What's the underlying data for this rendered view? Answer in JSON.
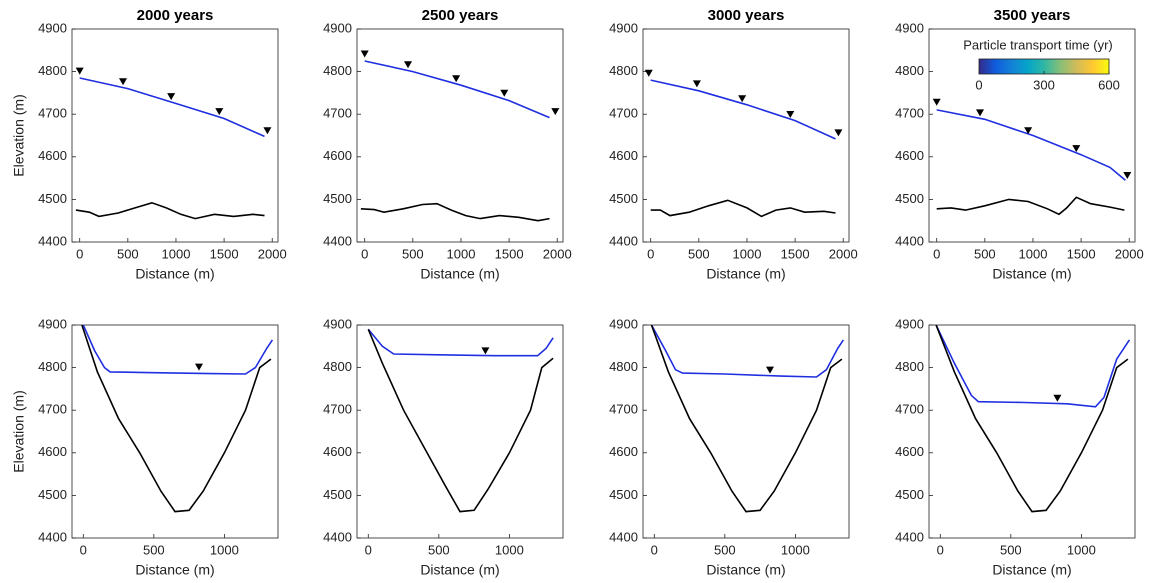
{
  "chart_data": [
    {
      "type": "line",
      "title": "2000 years",
      "xlabel": "Distance (m)",
      "ylabel": "Elevation (m)",
      "xlim": [
        -80,
        2060
      ],
      "ylim": [
        4400,
        4900
      ],
      "xticks": [
        0,
        500,
        1000,
        1500,
        2000
      ],
      "yticks": [
        4400,
        4500,
        4600,
        4700,
        4800,
        4900
      ],
      "series": [
        {
          "color": "#1f2fe0",
          "x": [
            0,
            500,
            1000,
            1500,
            1920
          ],
          "values": [
            4785,
            4760,
            4725,
            4690,
            4648
          ]
        },
        {
          "color": "#000000",
          "x": [
            -40,
            100,
            200,
            400,
            600,
            750,
            900,
            1050,
            1200,
            1400,
            1600,
            1800,
            1920
          ],
          "values": [
            4475,
            4470,
            4460,
            4468,
            4482,
            4492,
            4480,
            4465,
            4455,
            4465,
            4460,
            4465,
            4462
          ]
        },
        {
          "type": "scatter",
          "marker": "triangle-down",
          "color": "#000000",
          "x": [
            0,
            450,
            950,
            1450,
            1950
          ],
          "values": [
            4800,
            4775,
            4740,
            4705,
            4660
          ]
        }
      ]
    },
    {
      "type": "line",
      "title": "2500 years",
      "xlabel": "Distance (m)",
      "xlim": [
        -80,
        2060
      ],
      "ylim": [
        4400,
        4900
      ],
      "xticks": [
        0,
        500,
        1000,
        1500,
        2000
      ],
      "yticks": [
        4400,
        4500,
        4600,
        4700,
        4800,
        4900
      ],
      "series": [
        {
          "color": "#1f2fe0",
          "x": [
            0,
            500,
            1000,
            1500,
            1920
          ],
          "values": [
            4825,
            4800,
            4768,
            4732,
            4692
          ]
        },
        {
          "color": "#000000",
          "x": [
            -40,
            100,
            200,
            400,
            600,
            750,
            900,
            1050,
            1200,
            1400,
            1600,
            1800,
            1920
          ],
          "values": [
            4478,
            4476,
            4470,
            4478,
            4488,
            4490,
            4475,
            4462,
            4455,
            4462,
            4458,
            4450,
            4455
          ]
        },
        {
          "type": "scatter",
          "marker": "triangle-down",
          "color": "#000000",
          "x": [
            0,
            450,
            950,
            1450,
            1980
          ],
          "values": [
            4840,
            4815,
            4782,
            4748,
            4705
          ]
        }
      ]
    },
    {
      "type": "line",
      "title": "3000 years",
      "xlabel": "Distance (m)",
      "xlim": [
        -80,
        2060
      ],
      "ylim": [
        4400,
        4900
      ],
      "xticks": [
        0,
        500,
        1000,
        1500,
        2000
      ],
      "yticks": [
        4400,
        4500,
        4600,
        4700,
        4800,
        4900
      ],
      "series": [
        {
          "color": "#1f2fe0",
          "x": [
            0,
            500,
            1000,
            1500,
            1920
          ],
          "values": [
            4780,
            4755,
            4722,
            4685,
            4642
          ]
        },
        {
          "color": "#000000",
          "x": [
            0,
            100,
            200,
            400,
            600,
            800,
            1000,
            1150,
            1300,
            1450,
            1600,
            1800,
            1920
          ],
          "values": [
            4475,
            4475,
            4462,
            4470,
            4485,
            4498,
            4480,
            4460,
            4475,
            4480,
            4470,
            4472,
            4468
          ]
        },
        {
          "type": "scatter",
          "marker": "triangle-down",
          "color": "#000000",
          "x": [
            -20,
            480,
            950,
            1450,
            1950
          ],
          "values": [
            4795,
            4770,
            4735,
            4698,
            4655
          ]
        }
      ]
    },
    {
      "type": "line",
      "title": "3500 years",
      "xlabel": "Distance (m)",
      "xlim": [
        -80,
        2060
      ],
      "ylim": [
        4400,
        4900
      ],
      "xticks": [
        0,
        500,
        1000,
        1500,
        2000
      ],
      "yticks": [
        4400,
        4500,
        4600,
        4700,
        4800,
        4900
      ],
      "colorbar": {
        "title": "Particle transport time (yr)",
        "lim": [
          0,
          600
        ],
        "ticks": [
          0,
          300,
          600
        ],
        "colors": [
          "#352a87",
          "#0f5cdd",
          "#1481d6",
          "#06a4ca",
          "#2eb7a4",
          "#87bf77",
          "#d1bb59",
          "#fec832",
          "#f9fb0e"
        ]
      },
      "series": [
        {
          "color": "#1f2fe0",
          "x": [
            0,
            500,
            1000,
            1500,
            1800,
            1960
          ],
          "values": [
            4710,
            4688,
            4650,
            4605,
            4575,
            4545
          ]
        },
        {
          "color": "#000000",
          "x": [
            0,
            150,
            300,
            500,
            750,
            950,
            1150,
            1270,
            1350,
            1450,
            1600,
            1800,
            1950
          ],
          "values": [
            4478,
            4480,
            4475,
            4485,
            4500,
            4495,
            4478,
            4465,
            4480,
            4505,
            4490,
            4482,
            4475
          ]
        },
        {
          "type": "scatter",
          "marker": "triangle-down",
          "color": "#000000",
          "x": [
            0,
            450,
            950,
            1450,
            1980
          ],
          "values": [
            4727,
            4702,
            4660,
            4618,
            4555
          ]
        }
      ]
    },
    {
      "type": "line",
      "xlabel": "Distance (m)",
      "ylabel": "Elevation (m)",
      "xlim": [
        -80,
        1380
      ],
      "ylim": [
        4400,
        4900
      ],
      "xticks": [
        0,
        500,
        1000
      ],
      "yticks": [
        4400,
        4500,
        4600,
        4700,
        4800,
        4900
      ],
      "series": [
        {
          "color": "#1f2fe0",
          "x": [
            0,
            80,
            150,
            190,
            500,
            900,
            1150,
            1220,
            1300,
            1340
          ],
          "values": [
            4900,
            4840,
            4800,
            4790,
            4788,
            4786,
            4785,
            4800,
            4845,
            4865
          ]
        },
        {
          "color": "#000000",
          "x": [
            -10,
            100,
            250,
            400,
            550,
            650,
            750,
            850,
            1000,
            1150,
            1250,
            1330
          ],
          "values": [
            4900,
            4790,
            4680,
            4600,
            4510,
            4462,
            4465,
            4510,
            4600,
            4700,
            4800,
            4820
          ]
        },
        {
          "type": "scatter",
          "marker": "triangle-down",
          "color": "#000000",
          "x": [
            820
          ],
          "values": [
            4800
          ]
        }
      ]
    },
    {
      "type": "line",
      "xlabel": "Distance (m)",
      "xlim": [
        -80,
        1380
      ],
      "ylim": [
        4400,
        4900
      ],
      "xticks": [
        0,
        500,
        1000
      ],
      "yticks": [
        4400,
        4500,
        4600,
        4700,
        4800,
        4900
      ],
      "series": [
        {
          "color": "#1f2fe0",
          "x": [
            0,
            100,
            180,
            500,
            900,
            1200,
            1260,
            1310
          ],
          "values": [
            4890,
            4850,
            4832,
            4830,
            4828,
            4828,
            4845,
            4870
          ]
        },
        {
          "color": "#000000",
          "x": [
            0,
            100,
            250,
            400,
            550,
            650,
            750,
            850,
            1000,
            1150,
            1230,
            1310
          ],
          "values": [
            4890,
            4810,
            4700,
            4610,
            4520,
            4462,
            4465,
            4515,
            4600,
            4700,
            4800,
            4822
          ]
        },
        {
          "type": "scatter",
          "marker": "triangle-down",
          "color": "#000000",
          "x": [
            830
          ],
          "values": [
            4838
          ]
        }
      ]
    },
    {
      "type": "line",
      "xlabel": "Distance (m)",
      "xlim": [
        -80,
        1380
      ],
      "ylim": [
        4400,
        4900
      ],
      "xticks": [
        0,
        500,
        1000
      ],
      "yticks": [
        4400,
        4500,
        4600,
        4700,
        4800,
        4900
      ],
      "series": [
        {
          "color": "#1f2fe0",
          "x": [
            -20,
            80,
            150,
            200,
            500,
            900,
            1150,
            1220,
            1300,
            1340
          ],
          "values": [
            4900,
            4840,
            4795,
            4787,
            4785,
            4780,
            4778,
            4795,
            4845,
            4865
          ]
        },
        {
          "color": "#000000",
          "x": [
            -20,
            100,
            250,
            400,
            550,
            650,
            750,
            850,
            1000,
            1150,
            1250,
            1330
          ],
          "values": [
            4900,
            4790,
            4680,
            4600,
            4510,
            4462,
            4465,
            4510,
            4600,
            4700,
            4800,
            4820
          ]
        },
        {
          "type": "scatter",
          "marker": "triangle-down",
          "color": "#000000",
          "x": [
            820
          ],
          "values": [
            4793
          ]
        }
      ]
    },
    {
      "type": "line",
      "xlabel": "Distance (m)",
      "xlim": [
        -80,
        1380
      ],
      "ylim": [
        4400,
        4900
      ],
      "xticks": [
        0,
        500,
        1000
      ],
      "yticks": [
        4400,
        4500,
        4600,
        4700,
        4800,
        4900
      ],
      "series": [
        {
          "color": "#1f2fe0",
          "x": [
            -30,
            100,
            220,
            270,
            600,
            900,
            1100,
            1160,
            1250,
            1340
          ],
          "values": [
            4900,
            4810,
            4735,
            4720,
            4718,
            4715,
            4708,
            4730,
            4820,
            4865
          ]
        },
        {
          "color": "#000000",
          "x": [
            -30,
            100,
            250,
            400,
            550,
            650,
            750,
            850,
            1000,
            1150,
            1250,
            1330
          ],
          "values": [
            4900,
            4790,
            4680,
            4600,
            4510,
            4462,
            4465,
            4510,
            4600,
            4700,
            4800,
            4820
          ]
        },
        {
          "type": "scatter",
          "marker": "triangle-down",
          "color": "#000000",
          "x": [
            830
          ],
          "values": [
            4727
          ]
        }
      ]
    }
  ]
}
